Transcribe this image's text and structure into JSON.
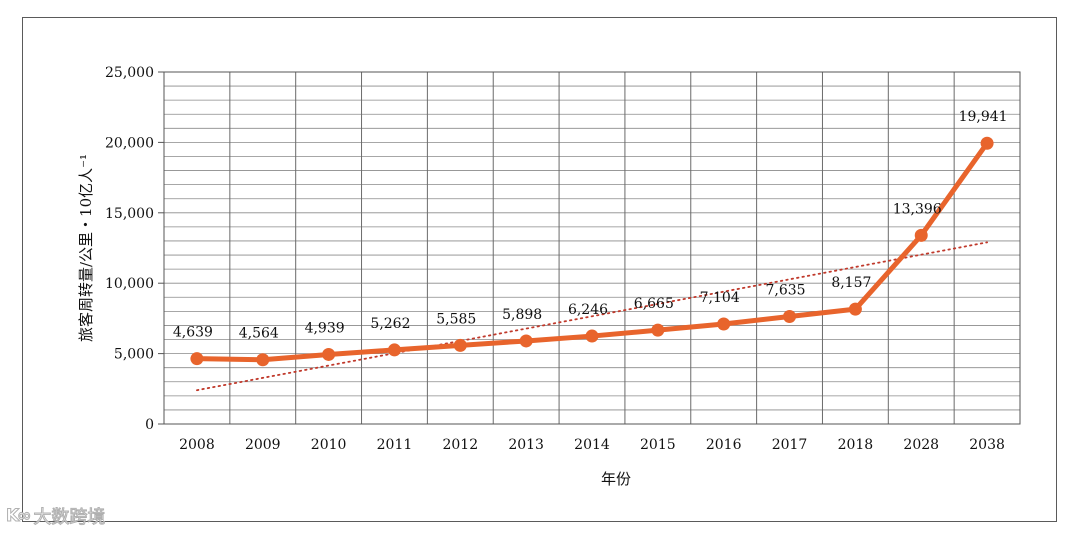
{
  "chart_data": {
    "type": "line",
    "title": "",
    "xlabel": "年份",
    "ylabel": "旅客周转量/公里・10亿人⁻¹",
    "categories": [
      "2008",
      "2009",
      "2010",
      "2011",
      "2012",
      "2013",
      "2014",
      "2015",
      "2016",
      "2017",
      "2018",
      "2028",
      "2038"
    ],
    "series": [
      {
        "values": [
          4639,
          4564,
          4939,
          5262,
          5585,
          5898,
          6246,
          6665,
          7104,
          7635,
          8157,
          13396,
          19941
        ],
        "data_labels": [
          "4,639",
          "4,564",
          "4,939",
          "5,262",
          "5,585",
          "5,898",
          "6,246",
          "6,665",
          "7,104",
          "7,635",
          "8,157",
          "13,396",
          "19,941"
        ],
        "color": "#e8642c"
      }
    ],
    "trendline": {
      "type": "linear",
      "start": 2400,
      "end": 12900,
      "color": "#c0392b",
      "style": "dotted"
    },
    "ylim": [
      0,
      25000
    ],
    "y_ticks": [
      0,
      5000,
      10000,
      15000,
      20000,
      25000
    ],
    "y_tick_labels": [
      "0",
      "5,000",
      "10,000",
      "15,000",
      "20,000",
      "25,000"
    ],
    "minor_y_step": 1000,
    "grid": true,
    "legend": "none"
  },
  "watermark": {
    "logo": "K∞",
    "text": "大数跨境"
  }
}
